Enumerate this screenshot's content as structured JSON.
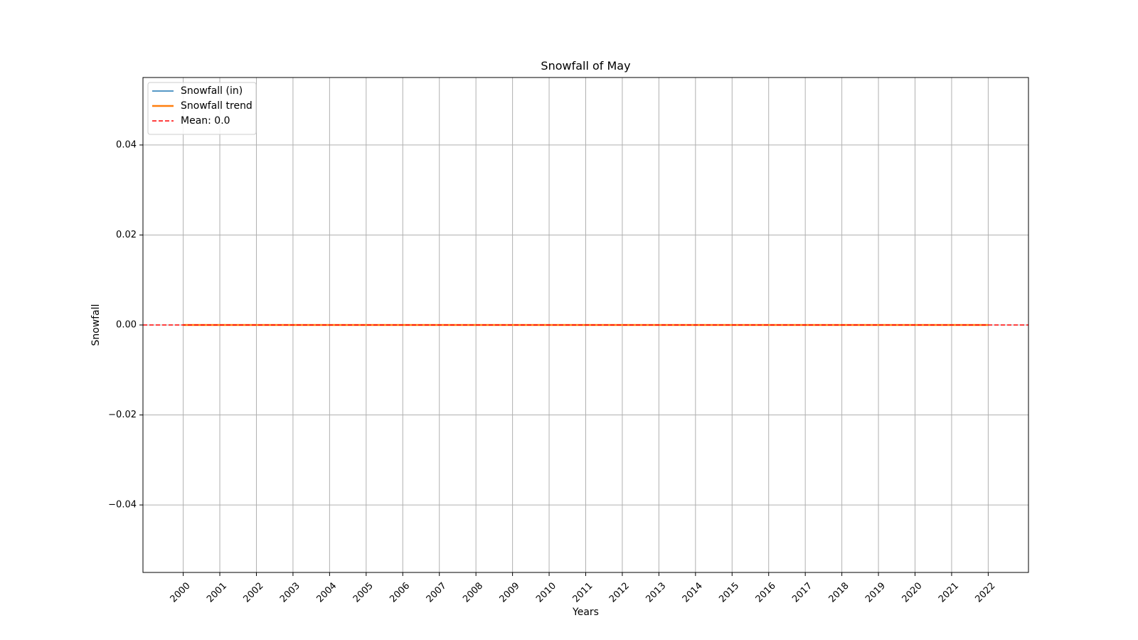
{
  "chart_data": {
    "type": "line",
    "title": "Snowfall of May",
    "xlabel": "Years",
    "ylabel": "Snowfall",
    "x": [
      2000,
      2001,
      2002,
      2003,
      2004,
      2005,
      2006,
      2007,
      2008,
      2009,
      2010,
      2011,
      2012,
      2013,
      2014,
      2015,
      2016,
      2017,
      2018,
      2019,
      2020,
      2021,
      2022
    ],
    "x_tick_labels": [
      "2000",
      "2001",
      "2002",
      "2003",
      "2004",
      "2005",
      "2006",
      "2007",
      "2008",
      "2009",
      "2010",
      "2011",
      "2012",
      "2013",
      "2014",
      "2015",
      "2016",
      "2017",
      "2018",
      "2019",
      "2020",
      "2021",
      "2022"
    ],
    "xlim": [
      1998.9,
      2023.1
    ],
    "ylim": [
      -0.055,
      0.055
    ],
    "y_ticks": [
      -0.04,
      -0.02,
      0.0,
      0.02,
      0.04
    ],
    "y_tick_labels": [
      "−0.04",
      "−0.02",
      "0.00",
      "0.02",
      "0.04"
    ],
    "grid": true,
    "legend_position": "top-left",
    "series": [
      {
        "name": "Snowfall (in)",
        "color": "#1f77b4",
        "style": "solid",
        "values": [
          0,
          0,
          0,
          0,
          0,
          0,
          0,
          0,
          0,
          0,
          0,
          0,
          0,
          0,
          0,
          0,
          0,
          0,
          0,
          0,
          0,
          0,
          0
        ]
      },
      {
        "name": "Snowfall trend",
        "color": "#ff7f0e",
        "style": "solid-thick",
        "values": [
          0,
          0,
          0,
          0,
          0,
          0,
          0,
          0,
          0,
          0,
          0,
          0,
          0,
          0,
          0,
          0,
          0,
          0,
          0,
          0,
          0,
          0,
          0
        ]
      }
    ],
    "reference_lines": [
      {
        "name": "Mean: 0.0",
        "color": "#ff0000",
        "style": "dashed",
        "y": 0.0
      }
    ]
  }
}
